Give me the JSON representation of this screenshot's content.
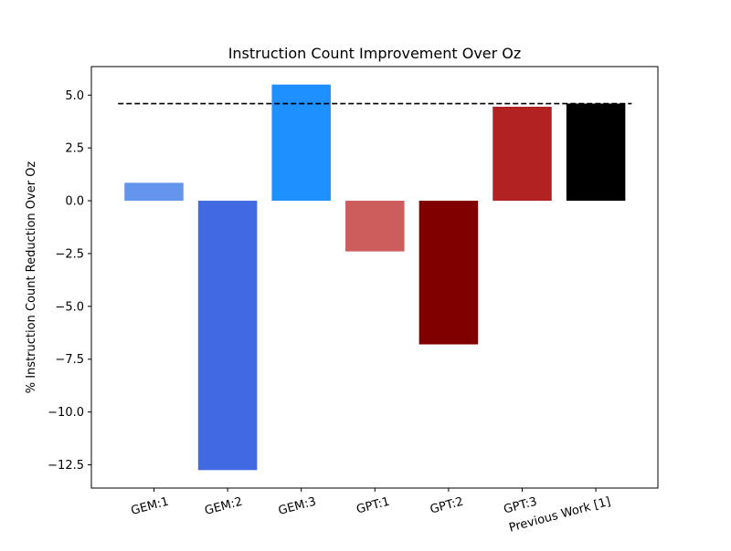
{
  "chart_data": {
    "type": "bar",
    "title": "Instruction Count Improvement Over Oz",
    "xlabel": "",
    "ylabel": "% Instruction Count Reduction Over Oz",
    "categories": [
      "GEM:1",
      "GEM:2",
      "GEM:3",
      "GPT:1",
      "GPT:2",
      "GPT:3",
      "Previous Work [1]"
    ],
    "values": [
      0.85,
      -12.75,
      5.5,
      -2.4,
      -6.8,
      4.45,
      4.6
    ],
    "colors": [
      "#6495ED",
      "#4169E1",
      "#1E90FF",
      "#CD5C5C",
      "#800000",
      "#B22222",
      "#000000"
    ],
    "ylim": [
      -13.6,
      6.35
    ],
    "yticks": [
      5.0,
      2.5,
      0.0,
      -2.5,
      -5.0,
      -7.5,
      -10.0,
      -12.5
    ],
    "ytick_labels": [
      "5.0",
      "2.5",
      "0.0",
      "−2.5",
      "−5.0",
      "−7.5",
      "−10.0",
      "−12.5"
    ],
    "reference_line": {
      "value": 4.6,
      "style": "dashed",
      "color": "#000000"
    },
    "grid": false,
    "xtick_rotation_deg": -15
  }
}
